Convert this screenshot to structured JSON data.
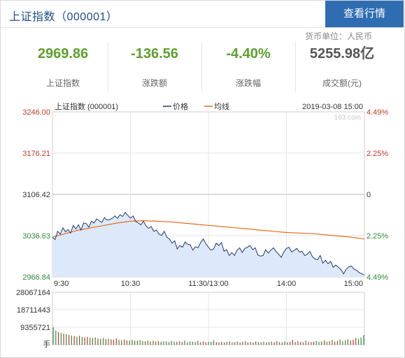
{
  "header": {
    "title": "上证指数（000001）",
    "action_button": "查看行情"
  },
  "currency_note": "货币单位：人民币",
  "stats": [
    {
      "value": "2969.86",
      "label": "上证指数",
      "color": "#5ca02c"
    },
    {
      "value": "-136.56",
      "label": "涨跌额",
      "color": "#5ca02c"
    },
    {
      "value": "-4.40%",
      "label": "涨跌幅",
      "color": "#5ca02c"
    },
    {
      "value": "5255.98亿",
      "label": "成交额(元)",
      "color": "#555555"
    }
  ],
  "chart_data": [
    {
      "type": "line",
      "title": "上证指数 (000001)",
      "legend": [
        "价格",
        "均线"
      ],
      "legend_position": "top-center",
      "timestamp": "2019-03-08 15:00",
      "watermark": "163.com",
      "y_ticks_left": [
        "3246.00",
        "3176.21",
        "3106.42",
        "3036.63",
        "2966.84"
      ],
      "y_ticks_right": [
        "4.49%",
        "2.25%",
        "0",
        "2.25%",
        "4.49%"
      ],
      "x_ticks": [
        "9:30",
        "10:30",
        "11:30/13:00",
        "14:00",
        "15:00"
      ],
      "ylim": [
        2966.84,
        3246.0
      ],
      "colors": {
        "price": "#1d3c6e",
        "avg": "#e86a1c",
        "fill": "#dde9fa",
        "up": "#c0392b",
        "down": "#2e8b3a"
      },
      "series": [
        {
          "name": "价格",
          "x": [
            0,
            2,
            4,
            6,
            8,
            10,
            12,
            14,
            16,
            18,
            20,
            22,
            24,
            26,
            28,
            30,
            32,
            34,
            36,
            38,
            40,
            42,
            44,
            46,
            48,
            50,
            52,
            54,
            56,
            58,
            60,
            62,
            64,
            66,
            68,
            70,
            72,
            74,
            76,
            78,
            80,
            82,
            84,
            86,
            88,
            90,
            92,
            94,
            96,
            98,
            100,
            102,
            104,
            106,
            108,
            110,
            112,
            114,
            116,
            118,
            120,
            122,
            124,
            126,
            128,
            130,
            132,
            134,
            136,
            138,
            140,
            142,
            144,
            146,
            148,
            150,
            152,
            154,
            156,
            158,
            160,
            162,
            164,
            166,
            168,
            170,
            172,
            174,
            176,
            178,
            180,
            182,
            184,
            186,
            188,
            190,
            192,
            194,
            196,
            198,
            200,
            202,
            204,
            206,
            208,
            210,
            212,
            214,
            216,
            218,
            220,
            222,
            224,
            226,
            228,
            230,
            232,
            234,
            236,
            238,
            240
          ],
          "y": [
            3034,
            3030,
            3044,
            3039,
            3050,
            3043,
            3047,
            3041,
            3054,
            3048,
            3055,
            3046,
            3058,
            3057,
            3051,
            3061,
            3058,
            3065,
            3062,
            3059,
            3067,
            3063,
            3064,
            3066,
            3070,
            3066,
            3072,
            3069,
            3076,
            3071,
            3066,
            3070,
            3061,
            3058,
            3055,
            3061,
            3053,
            3049,
            3052,
            3044,
            3046,
            3039,
            3037,
            3044,
            3034,
            3031,
            3024,
            3028,
            3014,
            3020,
            3017,
            3026,
            3022,
            3021,
            3012,
            3018,
            3016,
            3025,
            3031,
            3023,
            3017,
            3012,
            3014,
            3024,
            3020,
            3025,
            3010,
            3013,
            3003,
            3008,
            3003,
            3012,
            3016,
            3008,
            3015,
            3017,
            3020,
            3013,
            3016,
            3004,
            3002,
            3003,
            3013,
            3007,
            3012,
            3016,
            3010,
            3005,
            3000,
            3009,
            3015,
            3017,
            3009,
            3012,
            3015,
            3009,
            3010,
            3003,
            3005,
            3010,
            3001,
            2997,
            2996,
            3003,
            2990,
            2995,
            2989,
            2993,
            2983,
            2987,
            2983,
            2979,
            2972,
            2980,
            2984,
            2985,
            2980,
            2978,
            2974,
            2972,
            2970
          ]
        },
        {
          "name": "均线",
          "x": [
            0,
            10,
            20,
            30,
            40,
            50,
            60,
            70,
            80,
            90,
            100,
            110,
            120,
            130,
            140,
            150,
            160,
            170,
            180,
            190,
            200,
            210,
            220,
            230,
            240
          ],
          "y": [
            3034,
            3040,
            3046,
            3050,
            3054,
            3058,
            3061,
            3062,
            3061,
            3060,
            3058,
            3056,
            3054,
            3052,
            3050,
            3048,
            3046,
            3044,
            3042,
            3041,
            3040,
            3038,
            3036,
            3034,
            3031
          ]
        }
      ]
    },
    {
      "type": "bar",
      "title": "",
      "y_ticks": [
        "28067164",
        "18711443",
        "9355721",
        "手"
      ],
      "ylim": [
        0,
        28067164
      ],
      "volumes": [
        9355721,
        7600000,
        6800000,
        6300000,
        5900000,
        5700000,
        5200000,
        4900000,
        4600000,
        4300000,
        4800000,
        4100000,
        3900000,
        4200000,
        3700000,
        3500000,
        3900000,
        3300000,
        3100000,
        3600000,
        3000000,
        3200000,
        2900000,
        2700000,
        3400000,
        2600000,
        2500000,
        2800000,
        2400000,
        2300000,
        2600000,
        2200000,
        2100000,
        2500000,
        2000000,
        1900000,
        2300000,
        1800000,
        2100000,
        1700000,
        2000000,
        1600000,
        1900000,
        1800000,
        1500000,
        2000000,
        1700000,
        1600000,
        1900000,
        1500000,
        2200000,
        1400000,
        1800000,
        1600000,
        1500000,
        2100000,
        1400000,
        1700000,
        1300000,
        1600000,
        1500000,
        2400000,
        1400000,
        1300000,
        1700000,
        1200000,
        1500000,
        1800000,
        1300000,
        1400000,
        1700000,
        1200000,
        1600000,
        1900000,
        1300000,
        1500000,
        1200000,
        1800000,
        1400000,
        1300000,
        1600000,
        1200000,
        1500000,
        1700000,
        1300000,
        2000000,
        1400000,
        1200000,
        1800000,
        1300000,
        1600000,
        2600000,
        1400000,
        1900000,
        1500000,
        1300000,
        2200000,
        1600000,
        1400000,
        1700000,
        2000000,
        1500000,
        1800000,
        2300000,
        1600000,
        1900000,
        2500000,
        1700000,
        2100000,
        2800000,
        1900000,
        2400000,
        3000000,
        2200000,
        2700000,
        3600000,
        3100000,
        3900000,
        5200000
      ],
      "directions": [
        "d",
        "d",
        "u",
        "d",
        "u",
        "d",
        "u",
        "d",
        "u",
        "d",
        "u",
        "d",
        "u",
        "u",
        "d",
        "u",
        "d",
        "u",
        "d",
        "d",
        "u",
        "d",
        "u",
        "u",
        "u",
        "d",
        "u",
        "d",
        "u",
        "d",
        "d",
        "u",
        "d",
        "d",
        "d",
        "u",
        "d",
        "d",
        "u",
        "d",
        "u",
        "d",
        "d",
        "u",
        "d",
        "d",
        "d",
        "u",
        "d",
        "u",
        "d",
        "u",
        "d",
        "d",
        "d",
        "u",
        "d",
        "u",
        "u",
        "d",
        "d",
        "d",
        "u",
        "u",
        "d",
        "u",
        "d",
        "u",
        "d",
        "u",
        "d",
        "u",
        "u",
        "d",
        "u",
        "u",
        "u",
        "d",
        "u",
        "d",
        "d",
        "u",
        "u",
        "d",
        "u",
        "u",
        "d",
        "d",
        "d",
        "u",
        "u",
        "u",
        "d",
        "u",
        "u",
        "d",
        "u",
        "d",
        "u",
        "u",
        "d",
        "d",
        "d",
        "u",
        "d",
        "u",
        "d",
        "u",
        "d",
        "u",
        "d",
        "d",
        "d",
        "u",
        "u",
        "u",
        "d",
        "d",
        "d",
        "d",
        "d"
      ]
    }
  ]
}
